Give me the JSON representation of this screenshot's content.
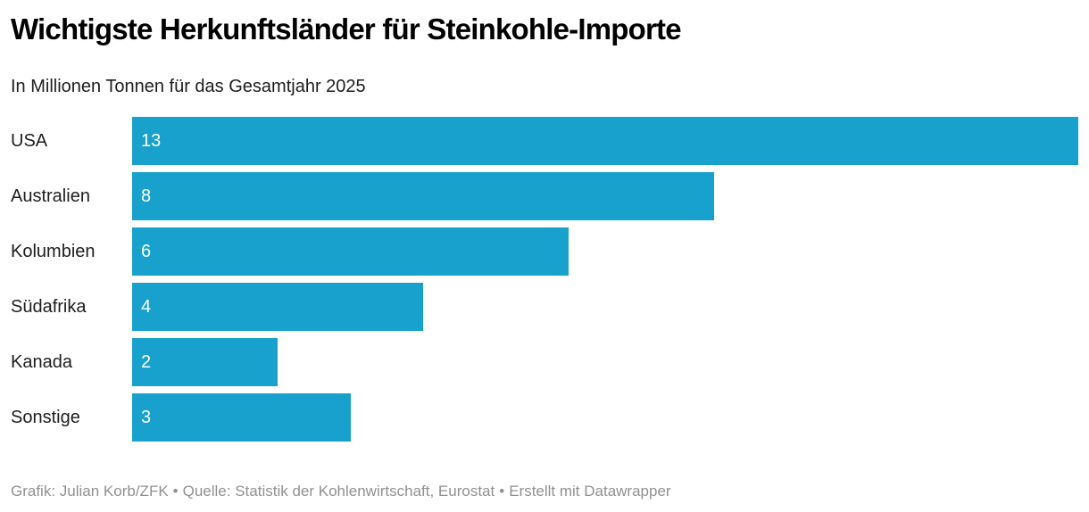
{
  "header": {
    "title": "Wichtigste Herkunftsländer für Steinkohle-Importe",
    "subtitle": "In Millionen Tonnen für das Gesamtjahr 2025"
  },
  "chart_data": {
    "type": "bar",
    "orientation": "horizontal",
    "title": "Wichtigste Herkunftsländer für Steinkohle-Importe",
    "subtitle": "In Millionen Tonnen für das Gesamtjahr 2025",
    "categories": [
      "USA",
      "Australien",
      "Kolumbien",
      "Südafrika",
      "Kanada",
      "Sonstige"
    ],
    "values": [
      13,
      8,
      6,
      4,
      2,
      3
    ],
    "xlabel": "",
    "ylabel": "",
    "xlim": [
      0,
      13
    ],
    "grid": false,
    "legend": false,
    "value_labels_inside_bars": true,
    "bar_color": "#18a1cd",
    "value_label_color": "#ffffff"
  },
  "footer": {
    "attribution": "Grafik: Julian Korb/ZFK",
    "separator": "•",
    "source": "Quelle: Statistik der Kohlenwirtschaft, Eurostat",
    "created_with": "Erstellt mit Datawrapper"
  }
}
